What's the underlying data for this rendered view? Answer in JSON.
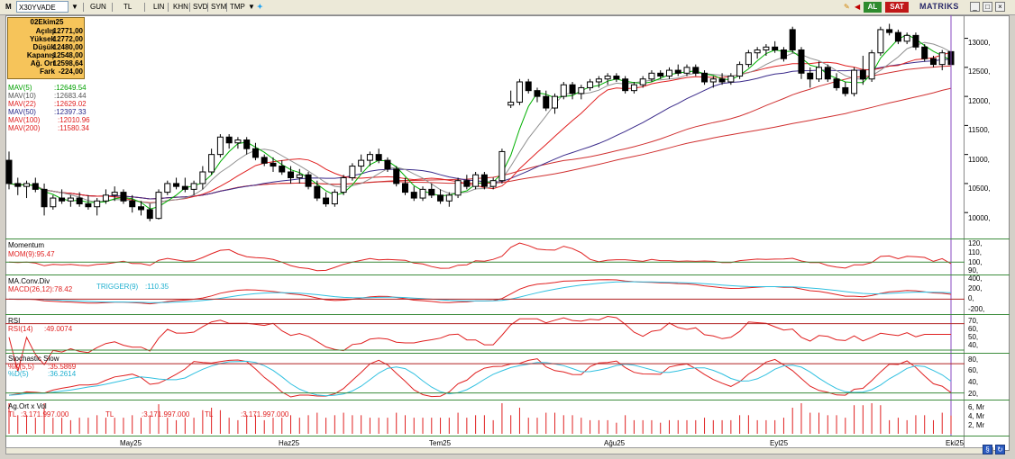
{
  "toolbar": {
    "symbol": "X30YVADE",
    "items": [
      "GUN",
      "TL",
      "LIN",
      "KHN",
      "SVD",
      "SYM",
      "TMP"
    ],
    "buy_label": "AL",
    "sell_label": "SAT",
    "brand": "MATRIKS",
    "icons": [
      "chevron-down-icon",
      "twitter-bird-icon",
      "edit-icon",
      "arrow-left-icon",
      "arrow-right-icon",
      "minimize-icon",
      "maximize-icon",
      "close-icon"
    ]
  },
  "info_box": {
    "date": "02Ekim25",
    "rows": [
      {
        "label": "Açılış",
        "value": "12771,00"
      },
      {
        "label": "Yüksek",
        "value": "12772,00"
      },
      {
        "label": "Düşük",
        "value": "12480,00"
      },
      {
        "label": "Kapanış",
        "value": "12548,00"
      },
      {
        "label": "Ağ. Ort",
        "value": "12598,64"
      },
      {
        "label": "Fark",
        "value": "-224,00"
      }
    ]
  },
  "ma_legend": [
    {
      "label": "MAV(5)",
      "value": ":12649.54",
      "color": "#00a000"
    },
    {
      "label": "MAV(10)",
      "value": ":12683.44",
      "color": "#707070"
    },
    {
      "label": "MAV(22)",
      "value": ":12629.02",
      "color": "#e02020"
    },
    {
      "label": "MAV(50)",
      "value": ":12397.33",
      "color": "#2a2a8a"
    },
    {
      "label": "MAV(100)",
      "value": ":12010.96",
      "color": "#e02020"
    },
    {
      "label": "MAV(200)",
      "value": ":11580.34",
      "color": "#e02020"
    }
  ],
  "panels": {
    "momentum": {
      "title": "Momentum",
      "label": "MOM(9)",
      "value": ":95.47",
      "ticks": [
        "120,",
        "110,",
        "100,",
        "90,"
      ]
    },
    "macd": {
      "title": "MA.Conv.Div",
      "label": "MACD(26,12)",
      "value": ":78.42",
      "trigger_label": "TRIGGER(9)",
      "trigger_value": ":110.35",
      "ticks": [
        "400,",
        "200,",
        "0,",
        "-200,"
      ]
    },
    "rsi": {
      "title": "RSI",
      "label": "RSI(14)",
      "value": ":49.0074",
      "ticks": [
        "70,",
        "60,",
        "50,",
        "40,"
      ]
    },
    "stoch": {
      "title": "Stochastic Slow",
      "k_label": "%K(5,5)",
      "k_value": ":35.5869",
      "d_label": "%D(5)",
      "d_value": ":36.2614",
      "ticks": [
        "80,",
        "60,",
        "40,",
        "20,"
      ]
    },
    "vol": {
      "title": "Ag.Ort x Vol",
      "items": [
        "TL",
        ":3.171.997.000",
        "TL",
        ":3.171.997.000",
        "TL",
        ":3.171.997.000"
      ],
      "ticks": [
        "6, Mr",
        "4, Mr",
        "2, Mr"
      ]
    }
  },
  "price_ticks": [
    "13000,",
    "12500,",
    "12000,",
    "11500,",
    "11000,",
    "10500,",
    "10000,"
  ],
  "x_labels": [
    "May25",
    "Haz25",
    "Tem25",
    "Ağu25",
    "Eyl25",
    "Eki25"
  ],
  "chart_data": {
    "type": "candlestick",
    "symbol": "X30YVADE",
    "ylim": [
      9600,
      13350
    ],
    "yticks": [
      10000,
      10500,
      11000,
      11500,
      12000,
      12500,
      13000
    ],
    "x_labels": [
      "May25",
      "Haz25",
      "Tem25",
      "Ağu25",
      "Eyl25",
      "Eki25"
    ],
    "candles": [
      [
        10900,
        11050,
        10400,
        10500
      ],
      [
        10500,
        10600,
        10300,
        10450
      ],
      [
        10450,
        10550,
        10250,
        10500
      ],
      [
        10500,
        10600,
        10350,
        10400
      ],
      [
        10400,
        10500,
        9950,
        10100
      ],
      [
        10100,
        10300,
        10050,
        10250
      ],
      [
        10250,
        10400,
        10150,
        10200
      ],
      [
        10200,
        10300,
        10100,
        10250
      ],
      [
        10250,
        10350,
        10100,
        10150
      ],
      [
        10150,
        10300,
        10050,
        10100
      ],
      [
        10100,
        10250,
        9950,
        10200
      ],
      [
        10200,
        10400,
        10150,
        10300
      ],
      [
        10300,
        10450,
        10200,
        10350
      ],
      [
        10350,
        10400,
        10150,
        10200
      ],
      [
        10200,
        10300,
        10000,
        10100
      ],
      [
        10100,
        10200,
        9950,
        10050
      ],
      [
        10050,
        10150,
        9850,
        9900
      ],
      [
        9900,
        10400,
        9880,
        10350
      ],
      [
        10350,
        10550,
        10300,
        10500
      ],
      [
        10500,
        10600,
        10400,
        10450
      ],
      [
        10450,
        10600,
        10350,
        10400
      ],
      [
        10400,
        10550,
        10300,
        10500
      ],
      [
        10500,
        10800,
        10400,
        10700
      ],
      [
        10700,
        11100,
        10650,
        11000
      ],
      [
        11000,
        11350,
        10950,
        11300
      ],
      [
        11300,
        11350,
        11100,
        11200
      ],
      [
        11200,
        11300,
        11100,
        11250
      ],
      [
        11250,
        11300,
        11000,
        11100
      ],
      [
        11100,
        11200,
        10900,
        10950
      ],
      [
        10950,
        11000,
        10800,
        10850
      ],
      [
        10850,
        10950,
        10700,
        10800
      ],
      [
        10800,
        10900,
        10650,
        10700
      ],
      [
        10700,
        10800,
        10500,
        10600
      ],
      [
        10600,
        10750,
        10500,
        10650
      ],
      [
        10650,
        10700,
        10400,
        10450
      ],
      [
        10450,
        10550,
        10200,
        10250
      ],
      [
        10250,
        10350,
        10100,
        10150
      ],
      [
        10150,
        10400,
        10100,
        10350
      ],
      [
        10350,
        10650,
        10300,
        10600
      ],
      [
        10600,
        10850,
        10550,
        10800
      ],
      [
        10800,
        11000,
        10700,
        10900
      ],
      [
        10900,
        11050,
        10800,
        11000
      ],
      [
        11000,
        11100,
        10850,
        10900
      ],
      [
        10900,
        10950,
        10700,
        10750
      ],
      [
        10750,
        10800,
        10450,
        10500
      ],
      [
        10500,
        10600,
        10300,
        10350
      ],
      [
        10350,
        10450,
        10200,
        10250
      ],
      [
        10250,
        10450,
        10200,
        10400
      ],
      [
        10400,
        10500,
        10250,
        10300
      ],
      [
        10300,
        10400,
        10150,
        10200
      ],
      [
        10200,
        10350,
        10100,
        10300
      ],
      [
        10300,
        10600,
        10250,
        10550
      ],
      [
        10550,
        10650,
        10400,
        10450
      ],
      [
        10450,
        10700,
        10400,
        10650
      ],
      [
        10650,
        10700,
        10400,
        10450
      ],
      [
        10450,
        10600,
        10400,
        10550
      ],
      [
        10550,
        11100,
        10500,
        11050
      ],
      [
        11850,
        12100,
        11800,
        11900
      ],
      [
        11900,
        12300,
        11850,
        12250
      ],
      [
        12250,
        12300,
        12050,
        12100
      ],
      [
        12100,
        12150,
        11900,
        12000
      ],
      [
        12000,
        12100,
        11750,
        11800
      ],
      [
        11800,
        12050,
        11700,
        12000
      ],
      [
        12000,
        12250,
        11950,
        12200
      ],
      [
        12200,
        12250,
        11950,
        12050
      ],
      [
        12050,
        12200,
        11950,
        12150
      ],
      [
        12150,
        12300,
        12100,
        12250
      ],
      [
        12250,
        12350,
        12150,
        12300
      ],
      [
        12300,
        12400,
        12200,
        12350
      ],
      [
        12350,
        12400,
        12250,
        12300
      ],
      [
        12300,
        12350,
        12050,
        12100
      ],
      [
        12100,
        12250,
        12050,
        12200
      ],
      [
        12200,
        12350,
        12150,
        12300
      ],
      [
        12300,
        12450,
        12250,
        12400
      ],
      [
        12400,
        12450,
        12300,
        12350
      ],
      [
        12350,
        12500,
        12300,
        12450
      ],
      [
        12450,
        12550,
        12350,
        12400
      ],
      [
        12400,
        12550,
        12350,
        12500
      ],
      [
        12500,
        12550,
        12350,
        12400
      ],
      [
        12400,
        12450,
        12200,
        12250
      ],
      [
        12250,
        12350,
        12150,
        12300
      ],
      [
        12300,
        12400,
        12200,
        12250
      ],
      [
        12250,
        12400,
        12200,
        12350
      ],
      [
        12350,
        12600,
        12300,
        12550
      ],
      [
        12550,
        12800,
        12500,
        12750
      ],
      [
        12750,
        12850,
        12650,
        12800
      ],
      [
        12800,
        12900,
        12700,
        12850
      ],
      [
        12850,
        12950,
        12750,
        12800
      ],
      [
        12800,
        12850,
        12600,
        12650
      ],
      [
        13150,
        13200,
        12750,
        12800
      ],
      [
        12800,
        12850,
        12300,
        12400
      ],
      [
        12400,
        12500,
        12150,
        12300
      ],
      [
        12300,
        12600,
        12250,
        12500
      ],
      [
        12500,
        12550,
        12250,
        12300
      ],
      [
        12300,
        12400,
        12100,
        12150
      ],
      [
        12150,
        12250,
        12000,
        12050
      ],
      [
        12050,
        12500,
        12000,
        12450
      ],
      [
        12450,
        12700,
        12200,
        12300
      ],
      [
        12300,
        12800,
        12250,
        12750
      ],
      [
        12750,
        13200,
        12700,
        13150
      ],
      [
        13150,
        13250,
        13050,
        13100
      ],
      [
        13100,
        13150,
        12900,
        12950
      ],
      [
        12950,
        13100,
        12900,
        13050
      ],
      [
        13050,
        13100,
        12800,
        12850
      ],
      [
        12850,
        12900,
        12600,
        12650
      ],
      [
        12650,
        12700,
        12500,
        12550
      ],
      [
        12550,
        12800,
        12450,
        12750
      ],
      [
        12771,
        12772,
        12480,
        12548
      ]
    ]
  }
}
